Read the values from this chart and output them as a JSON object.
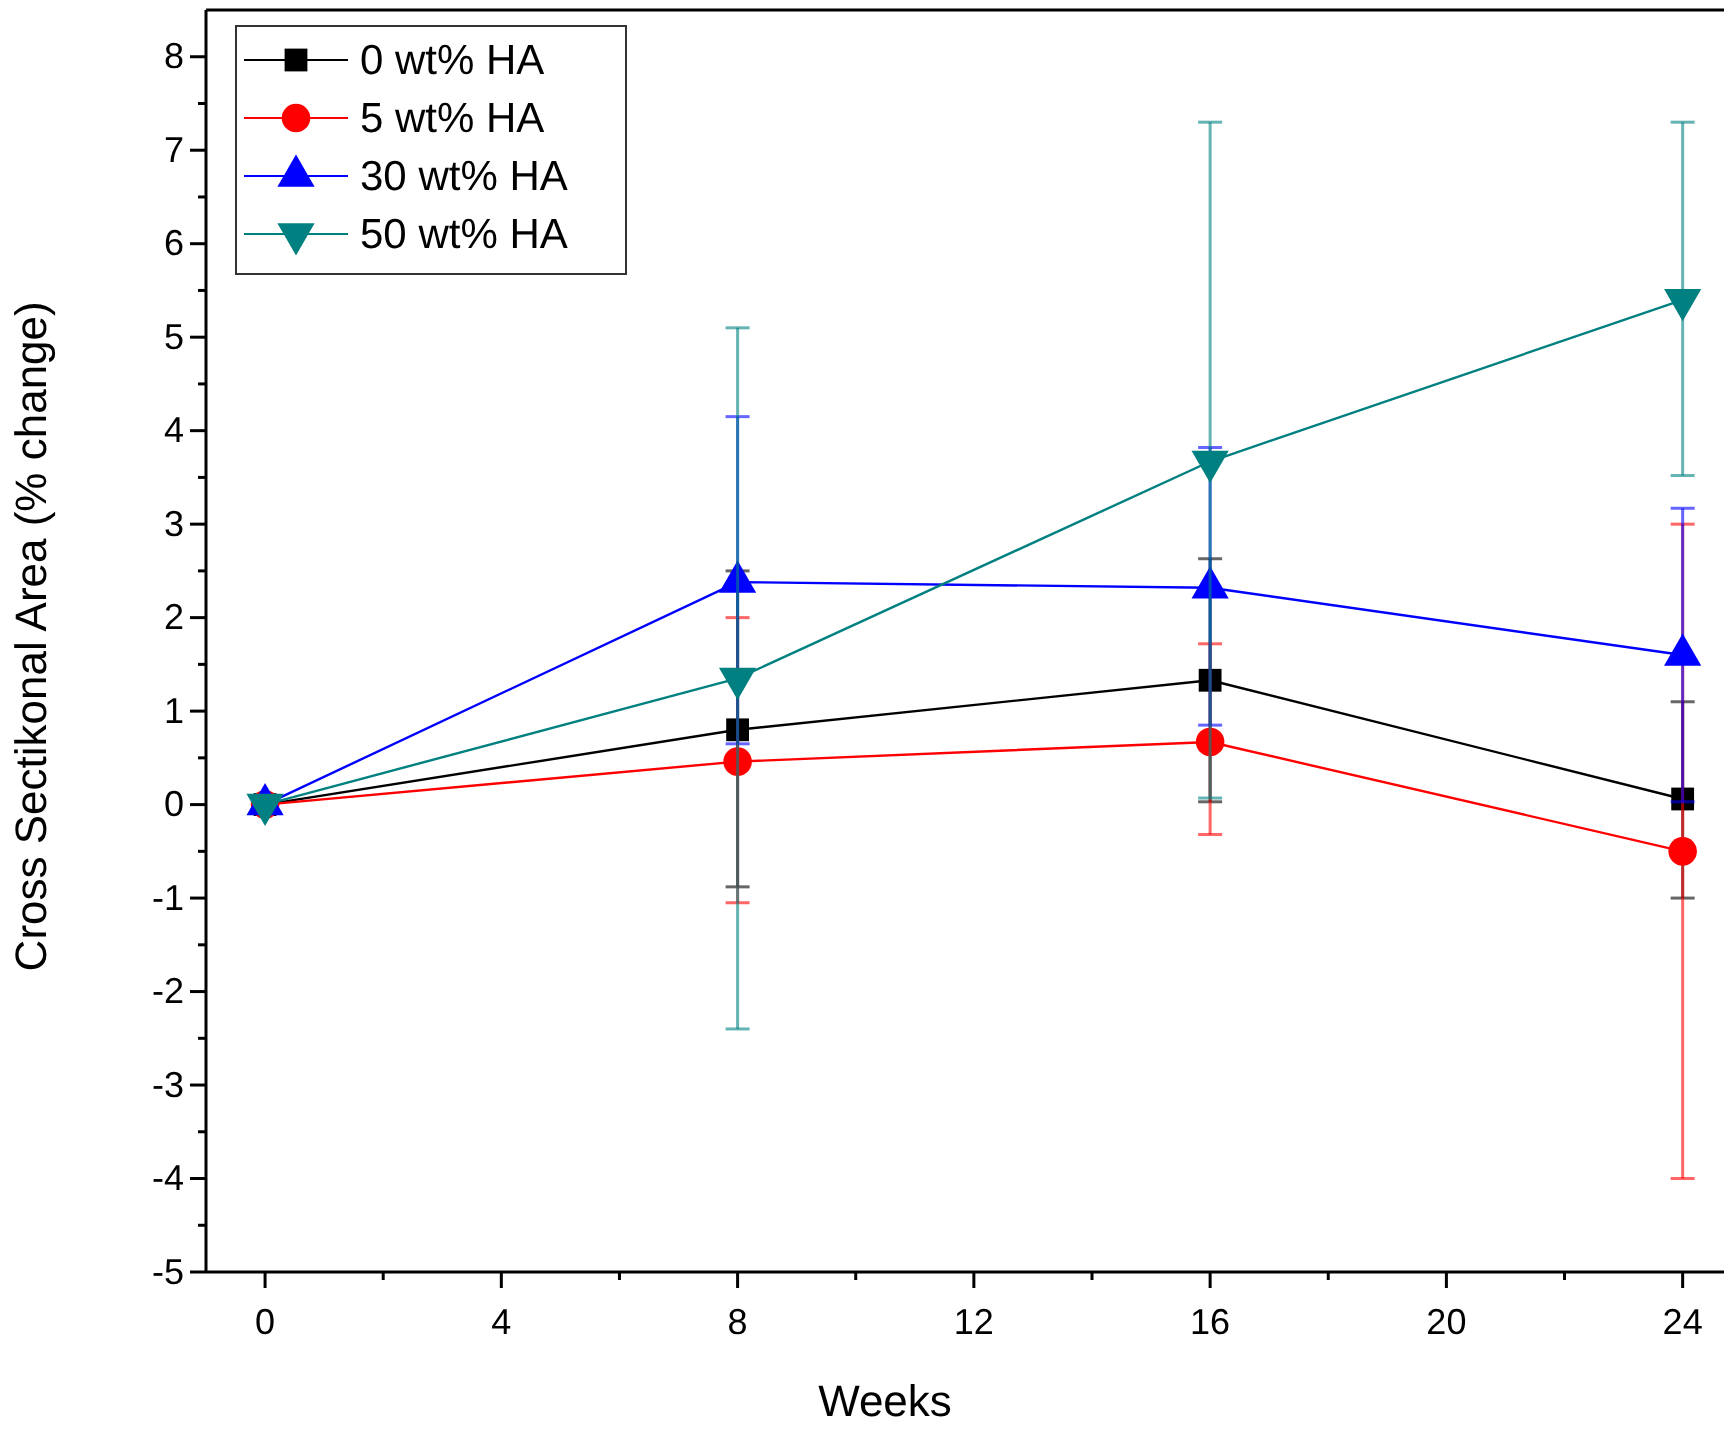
{
  "chart_data": {
    "type": "line",
    "xlabel": "Weeks",
    "ylabel": "Cross Sectikonal Area (% change)",
    "x": [
      0,
      8,
      16,
      24
    ],
    "series": [
      {
        "name": "0 wt% HA",
        "color": "#000000",
        "marker": "square",
        "values": [
          0,
          0.8,
          1.33,
          0.06
        ],
        "errors": [
          null,
          [
            -0.88,
            2.5
          ],
          [
            0.03,
            2.63
          ],
          [
            -1.0,
            1.1
          ]
        ]
      },
      {
        "name": "5 wt% HA",
        "color": "#ff0000",
        "marker": "circle",
        "values": [
          0,
          0.46,
          0.67,
          -0.5
        ],
        "errors": [
          null,
          [
            -1.05,
            2.0
          ],
          [
            -0.32,
            1.72
          ],
          [
            -4.0,
            3.0
          ]
        ]
      },
      {
        "name": "30 wt% HA",
        "color": "#0000ff",
        "marker": "triangle",
        "values": [
          0,
          2.38,
          2.32,
          1.6
        ],
        "errors": [
          null,
          [
            0.65,
            4.15
          ],
          [
            0.85,
            3.82
          ],
          [
            0.03,
            3.17
          ]
        ]
      },
      {
        "name": "50 wt% HA",
        "color": "#008080",
        "marker": "triangle-down",
        "values": [
          0,
          1.35,
          3.67,
          5.4
        ],
        "errors": [
          null,
          [
            -2.4,
            5.1
          ],
          [
            0.07,
            7.3
          ],
          [
            3.52,
            7.3
          ]
        ]
      }
    ],
    "xlim": [
      -1,
      24.7
    ],
    "xticks": [
      0,
      {
        "value": 2,
        "label": null
      },
      4,
      {
        "value": 6,
        "label": null
      },
      8,
      {
        "value": 10,
        "label": null
      },
      12,
      {
        "value": 14,
        "label": null
      },
      16,
      {
        "value": 18,
        "label": null
      },
      20,
      {
        "value": 22,
        "label": null
      },
      24
    ],
    "ylim": [
      -5,
      8.5
    ],
    "yticks": [
      -5,
      {
        "value": -4.5,
        "label": null
      },
      -4,
      {
        "value": -3.5,
        "label": null
      },
      -3,
      {
        "value": -2.5,
        "label": null
      },
      -2,
      {
        "value": -1.5,
        "label": null
      },
      -1,
      {
        "value": -0.5,
        "label": null
      },
      0,
      {
        "value": 0.5,
        "label": null
      },
      1,
      {
        "value": 1.5,
        "label": null
      },
      2,
      {
        "value": 2.5,
        "label": null
      },
      3,
      {
        "value": 3.5,
        "label": null
      },
      4,
      {
        "value": 4.5,
        "label": null
      },
      5,
      {
        "value": 5.5,
        "label": null
      },
      6,
      {
        "value": 6.5,
        "label": null
      },
      7,
      {
        "value": 7.5,
        "label": null
      },
      8
    ],
    "legend": "top left",
    "grid": false,
    "line_style": "solid"
  }
}
